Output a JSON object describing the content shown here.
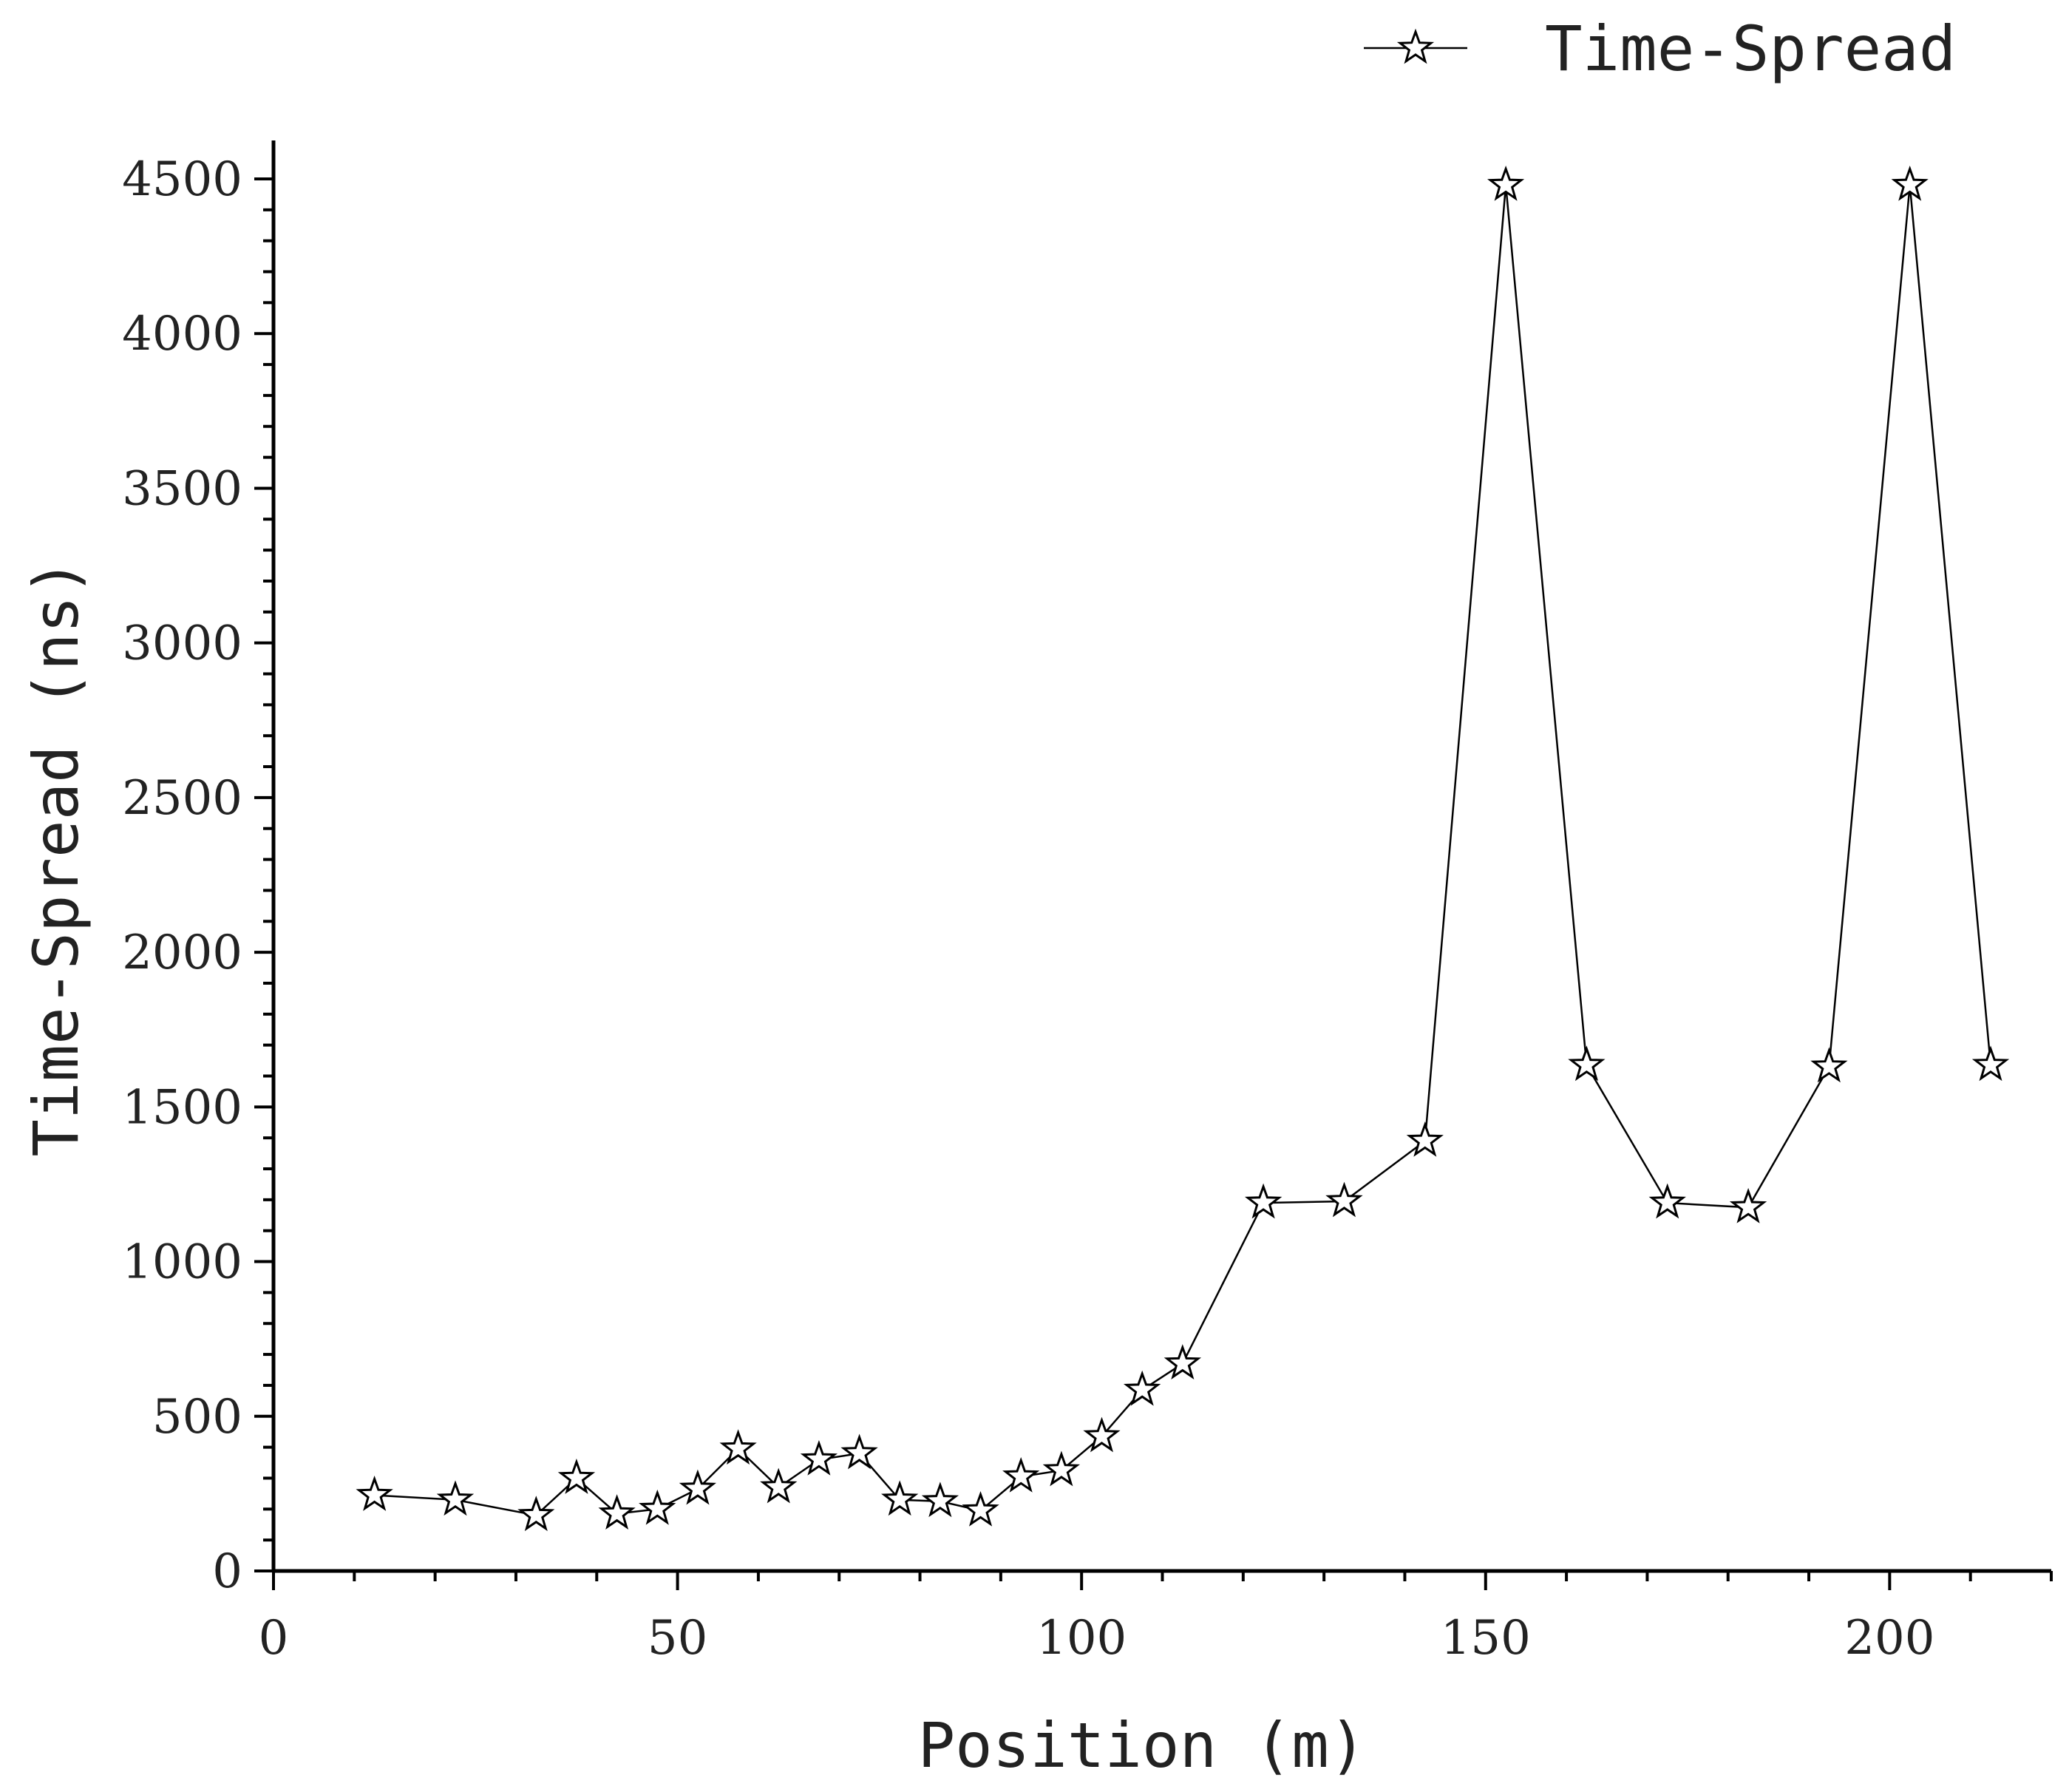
{
  "chart_data": {
    "type": "line",
    "title": "",
    "xlabel": "Position (m)",
    "ylabel": "Time-Spread (ns)",
    "xlim": [
      0,
      220
    ],
    "ylim": [
      0,
      4500
    ],
    "x_ticks": [
      0,
      50,
      100,
      150,
      200
    ],
    "y_ticks": [
      0,
      500,
      1000,
      1500,
      2000,
      2500,
      3000,
      3500,
      4000,
      4500
    ],
    "x_minor_step": 10,
    "y_minor_step": 100,
    "grid": false,
    "legend_position": "top-right",
    "series": [
      {
        "name": "Time-Spread",
        "marker": "star",
        "x": [
          12.5,
          22.5,
          32.5,
          37.5,
          42.5,
          47.5,
          52.5,
          57.5,
          62.5,
          67.5,
          72.5,
          77.5,
          82.5,
          87.5,
          92.5,
          97.5,
          102.5,
          107.5,
          112.5,
          122.5,
          132.5,
          142.5,
          152.5,
          162.5,
          172.5,
          182.5,
          192.5,
          202.5,
          212.5
        ],
        "y": [
          245,
          230,
          180,
          300,
          185,
          200,
          265,
          395,
          270,
          360,
          380,
          230,
          225,
          195,
          305,
          325,
          435,
          585,
          670,
          1190,
          1195,
          1390,
          4480,
          1635,
          1190,
          1175,
          1630,
          4480,
          1635
        ]
      }
    ]
  }
}
